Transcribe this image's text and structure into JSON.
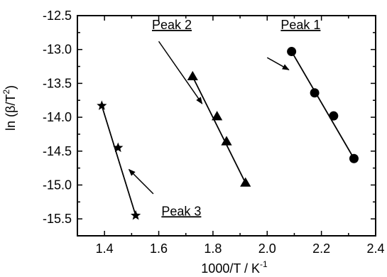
{
  "chart_data": {
    "type": "scatter",
    "xlabel_main": "1000/T / K",
    "xlabel_sup": "-1",
    "ylabel_pre": "ln (β/T",
    "ylabel_sup": "2",
    "ylabel_post": ")",
    "xlim": [
      1.3,
      2.4
    ],
    "ylim": [
      -15.75,
      -12.5
    ],
    "x_ticks": [
      1.4,
      1.6,
      1.8,
      2.0,
      2.2,
      2.4
    ],
    "x_tick_labels": [
      "1.4",
      "1.6",
      "1.8",
      "2.0",
      "2.2",
      "2.4"
    ],
    "y_ticks": [
      -12.5,
      -13.0,
      -13.5,
      -14.0,
      -14.5,
      -15.0,
      -15.5
    ],
    "y_tick_labels": [
      "-12.5",
      "-13.0",
      "-13.5",
      "-14.0",
      "-14.5",
      "-15.0",
      "-15.5"
    ],
    "grid": false,
    "series": [
      {
        "name": "Peak 1",
        "marker": "circle",
        "x": [
          2.09,
          2.175,
          2.245,
          2.32
        ],
        "y": [
          -13.03,
          -13.64,
          -13.98,
          -14.61
        ],
        "fit": [
          [
            2.09,
            -13.03
          ],
          [
            2.32,
            -14.61
          ]
        ]
      },
      {
        "name": "Peak 2",
        "marker": "triangle",
        "x": [
          1.725,
          1.815,
          1.85,
          1.92
        ],
        "y": [
          -13.4,
          -13.99,
          -14.36,
          -14.97
        ],
        "fit": [
          [
            1.725,
            -13.4
          ],
          [
            1.92,
            -14.97
          ]
        ]
      },
      {
        "name": "Peak 3",
        "marker": "star",
        "x": [
          1.39,
          1.45,
          1.515
        ],
        "y": [
          -13.83,
          -14.45,
          -15.45
        ],
        "fit": [
          [
            1.39,
            -13.83
          ],
          [
            1.515,
            -15.45
          ]
        ]
      }
    ],
    "annotations": [
      {
        "text": "Peak 1",
        "label_x": 2.05,
        "label_y": -12.7,
        "arrow_from": [
          2.0,
          -13.12
        ],
        "arrow_to": [
          2.08,
          -13.3
        ]
      },
      {
        "text": "Peak 2",
        "label_x": 1.575,
        "label_y": -12.7,
        "arrow_from": [
          1.6,
          -12.88
        ],
        "arrow_to": [
          1.76,
          -13.8
        ]
      },
      {
        "text": "Peak 3",
        "label_x": 1.61,
        "label_y": -15.45,
        "arrow_from": [
          1.58,
          -15.13
        ],
        "arrow_to": [
          1.49,
          -14.77
        ]
      }
    ]
  }
}
